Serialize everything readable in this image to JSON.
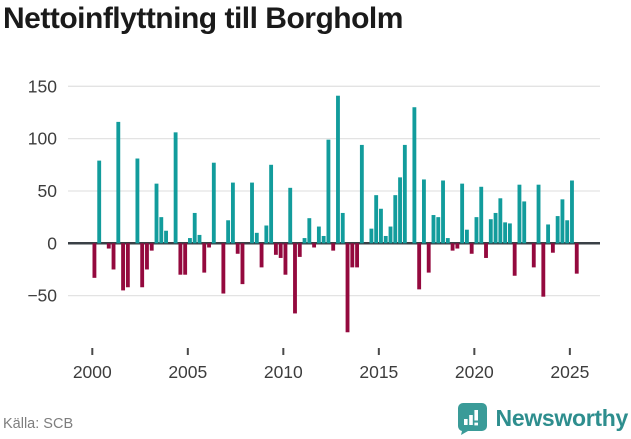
{
  "title": "Nettoinflyttning till Borgholm",
  "source": "Källa: SCB",
  "brand": {
    "name": "Newsworthy",
    "icon": "newsworthy-speech-bubble-bar-chart-icon",
    "color": "#2e8e8e",
    "icon_color": "#3a9b98"
  },
  "colors": {
    "positive_bar": "#129c9c",
    "negative_bar": "#94093e",
    "gridline": "#e3e3e3",
    "zero_line": "#3a4046",
    "axis_text": "#3d3d3d",
    "title_text": "#1a1a1a",
    "source_text": "#7e7e7e"
  },
  "chart_data": {
    "type": "bar",
    "title": "Nettoinflyttning till Borgholm",
    "frequency": "quarterly",
    "x_start": "2000-Q1",
    "x_end": "2025-Q2",
    "xlabel": "",
    "ylabel": "",
    "ylim": [
      -100,
      155
    ],
    "grid": "horizontal",
    "legend": "none",
    "y_ticks": [
      150,
      100,
      50,
      0,
      -50
    ],
    "y_tick_labels": [
      "150",
      "100",
      "50",
      "0",
      "−50"
    ],
    "x_tick_years": [
      2000,
      2005,
      2010,
      2015,
      2020,
      2025
    ],
    "x_tick_labels": [
      "2000",
      "2005",
      "2010",
      "2015",
      "2020",
      "2025"
    ],
    "values": [
      -33,
      79,
      0,
      -5,
      -25,
      116,
      -45,
      -42,
      0,
      81,
      -42,
      -25,
      -7,
      57,
      25,
      12,
      0,
      106,
      -30,
      -30,
      5,
      29,
      8,
      -28,
      -4,
      77,
      0,
      -48,
      22,
      58,
      -10,
      -39,
      0,
      58,
      10,
      -23,
      17,
      75,
      -11,
      -14,
      -30,
      53,
      -67,
      -13,
      5,
      24,
      -4,
      16,
      7,
      99,
      -7,
      141,
      29,
      -85,
      -23,
      -23,
      94,
      0,
      14,
      46,
      33,
      7,
      16,
      46,
      63,
      94,
      0,
      130,
      -44,
      61,
      -28,
      27,
      25,
      60,
      5,
      -7,
      -5,
      57,
      13,
      -10,
      25,
      54,
      -14,
      23,
      29,
      43,
      20,
      19,
      -31,
      56,
      40,
      0,
      -23,
      56,
      -51,
      18,
      -9,
      26,
      42,
      22,
      60,
      -29
    ]
  }
}
